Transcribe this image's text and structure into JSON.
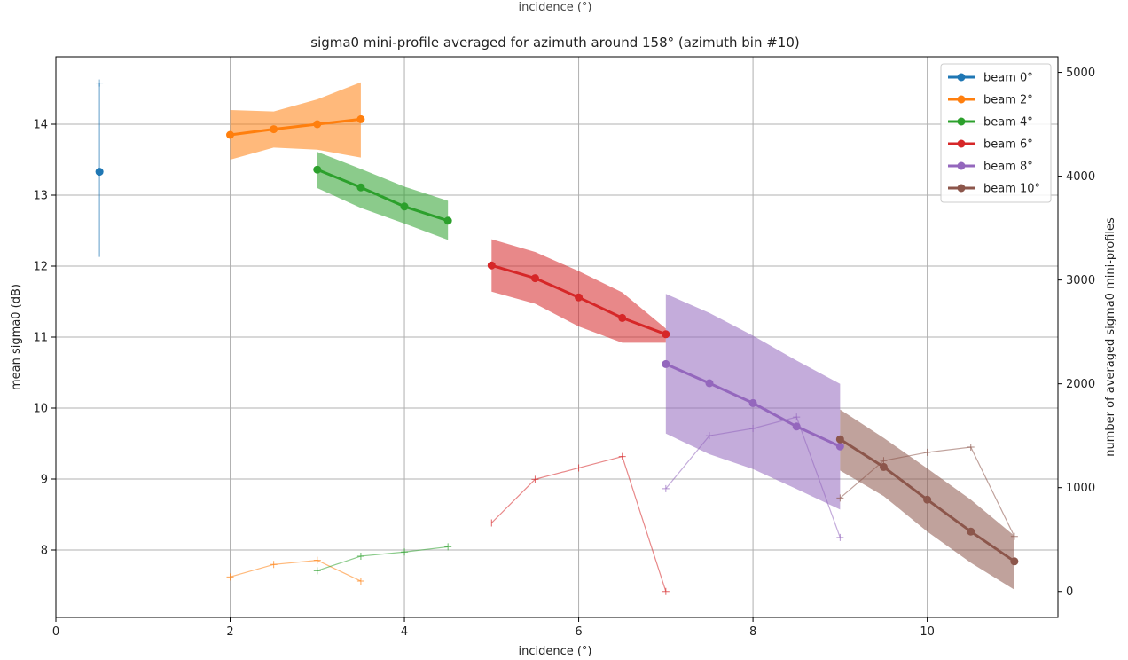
{
  "chart_data": {
    "type": "line",
    "title": "sigma0 mini-profile averaged for azimuth around 158° (azimuth bin #10)",
    "top_clipped_label": "incidence (°)",
    "xlabel": "incidence (°)",
    "ylabel": "mean sigma0 (dB)",
    "y2label": "number of averaged sigma0 mini-profiles",
    "xlim": [
      0,
      11.5
    ],
    "ylim": [
      7.05,
      14.95
    ],
    "y2lim": [
      -250,
      5150
    ],
    "x_ticks": [
      0,
      2,
      4,
      6,
      8,
      10
    ],
    "y_ticks": [
      8,
      9,
      10,
      11,
      12,
      13,
      14
    ],
    "y2_ticks": [
      0,
      1000,
      2000,
      3000,
      4000,
      5000
    ],
    "grid": true,
    "legend_position": "upper right",
    "series": [
      {
        "name": "beam 0°",
        "color": "#1f77b4",
        "x": [
          0.5
        ],
        "mean": [
          13.33
        ],
        "lower": [
          12.13
        ],
        "upper": [
          14.58
        ],
        "errorbar": true,
        "count_x": [],
        "count": []
      },
      {
        "name": "beam 2°",
        "color": "#ff7f0e",
        "x": [
          2.0,
          2.5,
          3.0,
          3.5
        ],
        "mean": [
          13.85,
          13.93,
          14.0,
          14.07
        ],
        "lower": [
          13.5,
          13.67,
          13.64,
          13.53
        ],
        "upper": [
          14.2,
          14.18,
          14.35,
          14.59
        ],
        "errorbar": false,
        "count_x": [
          2.0,
          2.5,
          3.0,
          3.5
        ],
        "count": [
          140,
          260,
          300,
          100
        ]
      },
      {
        "name": "beam 4°",
        "color": "#2ca02c",
        "x": [
          3.0,
          3.5,
          4.0,
          4.5
        ],
        "mean": [
          13.36,
          13.11,
          12.84,
          12.64
        ],
        "lower": [
          13.1,
          12.82,
          12.6,
          12.37
        ],
        "upper": [
          13.61,
          13.37,
          13.12,
          12.92
        ],
        "errorbar": false,
        "count_x": [
          3.0,
          3.5,
          4.0,
          4.5
        ],
        "count": [
          200,
          340,
          380,
          430
        ]
      },
      {
        "name": "beam 6°",
        "color": "#d62728",
        "x": [
          5.0,
          5.5,
          6.0,
          6.5,
          7.0
        ],
        "mean": [
          12.01,
          11.83,
          11.56,
          11.27,
          11.04
        ],
        "lower": [
          11.64,
          11.47,
          11.15,
          10.92,
          10.92
        ],
        "upper": [
          12.38,
          12.2,
          11.93,
          11.63,
          11.12
        ],
        "errorbar": false,
        "count_x": [
          5.0,
          5.5,
          6.0,
          6.5,
          7.0
        ],
        "count": [
          660,
          1080,
          1190,
          1300,
          0
        ]
      },
      {
        "name": "beam 8°",
        "color": "#9467bd",
        "x": [
          7.0,
          7.5,
          8.0,
          8.5,
          9.0
        ],
        "mean": [
          10.62,
          10.35,
          10.07,
          9.74,
          9.46
        ],
        "lower": [
          9.64,
          9.35,
          9.14,
          8.86,
          8.57
        ],
        "upper": [
          11.61,
          11.34,
          11.02,
          10.67,
          10.34
        ],
        "errorbar": false,
        "count_x": [
          7.0,
          7.5,
          8.0,
          8.5,
          9.0
        ],
        "count": [
          990,
          1500,
          1570,
          1680,
          520
        ]
      },
      {
        "name": "beam 10°",
        "color": "#8c564b",
        "x": [
          9.0,
          9.5,
          10.0,
          10.5,
          11.0
        ],
        "mean": [
          9.56,
          9.17,
          8.71,
          8.26,
          7.84
        ],
        "lower": [
          9.12,
          8.76,
          8.26,
          7.82,
          7.44
        ],
        "upper": [
          9.98,
          9.58,
          9.15,
          8.71,
          8.2
        ],
        "errorbar": false,
        "count_x": [
          9.0,
          9.5,
          10.0,
          10.5,
          11.0
        ],
        "count": [
          900,
          1260,
          1340,
          1390,
          530
        ]
      }
    ]
  }
}
